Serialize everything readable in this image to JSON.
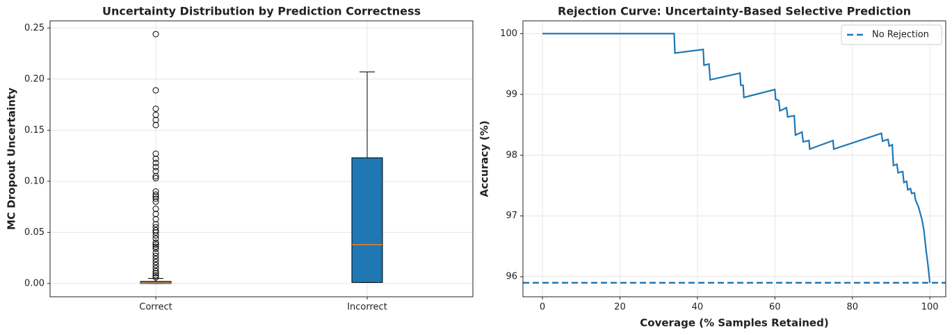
{
  "chart_data": [
    {
      "type": "box",
      "title": "Uncertainty Distribution by Prediction Correctness",
      "y_label": "MC Dropout Uncertainty",
      "categories": [
        "Correct",
        "Incorrect"
      ],
      "color": "#1f77b4",
      "median_color": "#ff7f0e",
      "boxes": [
        {
          "whisker_low": 0,
          "q1": 0,
          "median": 0.0005,
          "q3": 0.002,
          "whisker_high": 0.005,
          "outliers": [
            0.244,
            0.189,
            0.171,
            0.165,
            0.16,
            0.155,
            0.127,
            0.122,
            0.118,
            0.114,
            0.11,
            0.105,
            0.103,
            0.09,
            0.087,
            0.085,
            0.083,
            0.08,
            0.073,
            0.068,
            0.063,
            0.058,
            0.055,
            0.052,
            0.05,
            0.047,
            0.044,
            0.04,
            0.038,
            0.036,
            0.034,
            0.03,
            0.027,
            0.024,
            0.021,
            0.018,
            0.015,
            0.012,
            0.01,
            0.008,
            0.006
          ]
        },
        {
          "whisker_low": 0.001,
          "q1": 0.001,
          "median": 0.038,
          "q3": 0.123,
          "whisker_high": 0.207,
          "outliers": []
        }
      ],
      "ylim": [
        -0.013,
        0.257
      ],
      "yticks": [
        {
          "value": 0,
          "label": "0.00"
        },
        0.05,
        {
          "value": 0.1,
          "label": "0.10"
        },
        0.15,
        {
          "value": 0.2,
          "label": "0.20"
        },
        0.25
      ],
      "grid": true
    },
    {
      "type": "line",
      "title": "Rejection Curve: Uncertainty-Based Selective Prediction",
      "x_label": "Coverage (% Samples Retained)",
      "y_label": "Accuracy (%)",
      "color": "#1f77b4",
      "x": [
        0,
        34,
        34.2,
        41.5,
        41.7,
        43,
        43.3,
        51,
        51.2,
        51.8,
        52,
        60,
        60.2,
        61,
        61.3,
        63,
        63.3,
        65,
        65.3,
        67,
        67.3,
        68.8,
        69,
        75,
        75.2,
        87.5,
        87.8,
        89.2,
        89.5,
        90.3,
        90.6,
        91.5,
        91.8,
        93,
        93.3,
        94,
        94.3,
        95,
        95.3,
        96,
        96.3,
        97,
        97.5,
        98,
        98.5,
        99,
        99.5,
        100
      ],
      "values": [
        100,
        100,
        99.68,
        99.74,
        99.48,
        99.5,
        99.24,
        99.35,
        99.15,
        99.15,
        98.95,
        99.08,
        98.92,
        98.9,
        98.73,
        98.78,
        98.63,
        98.65,
        98.33,
        98.38,
        98.22,
        98.24,
        98.1,
        98.24,
        98.1,
        98.36,
        98.23,
        98.26,
        98.15,
        98.17,
        97.83,
        97.85,
        97.71,
        97.73,
        97.55,
        97.57,
        97.43,
        97.45,
        97.37,
        97.38,
        97.26,
        97.16,
        97.05,
        96.93,
        96.75,
        96.45,
        96.2,
        95.9
      ],
      "reference_line": {
        "name": "No Rejection",
        "value": 95.9,
        "color": "#1f77b4",
        "style": "dashed"
      },
      "legend": "upper right",
      "xlim": [
        -5.03,
        104.1
      ],
      "ylim": [
        95.67,
        100.21
      ],
      "xticks": [
        0,
        20,
        40,
        60,
        80,
        100
      ],
      "yticks": [
        96,
        97,
        98,
        99,
        100
      ],
      "grid": true
    }
  ]
}
